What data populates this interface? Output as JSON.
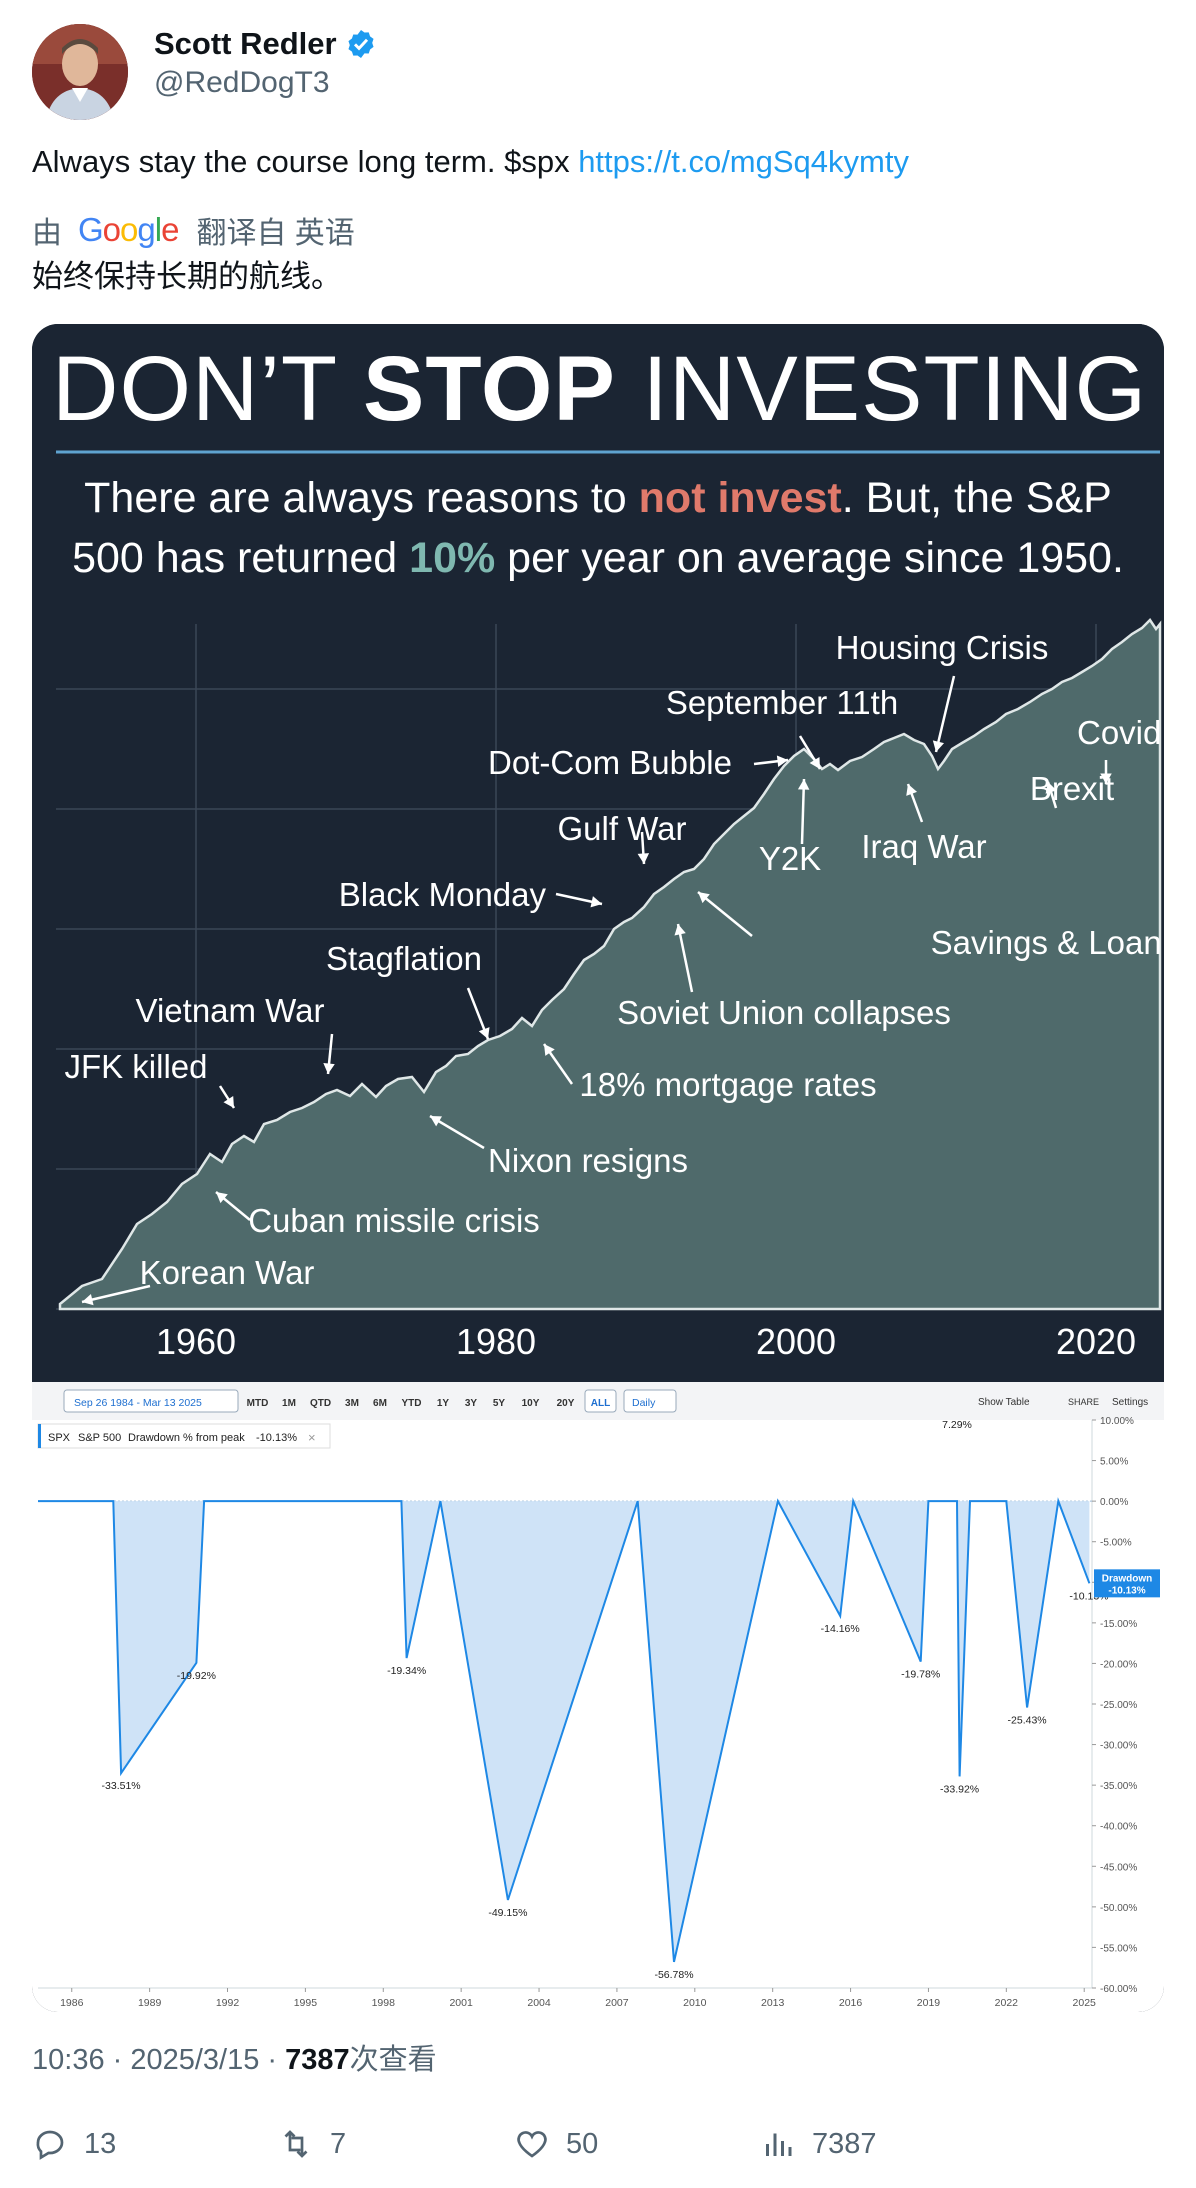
{
  "author": {
    "name": "Scott Redler",
    "handle": "@RedDogT3"
  },
  "tweet": {
    "text_before": "Always stay the course long term.  $spx ",
    "link": "https://t.co/mgSq4kymty",
    "translate_prefix": "由",
    "translate_logo": "Google",
    "translate_suffix": "翻译自 英语",
    "translated_text": "始终保持长期的航线。"
  },
  "infographic": {
    "title_light_1": "DON’T ",
    "title_bold": "STOP",
    "title_light_2": " INVESTING",
    "subtitle_line1_a": "There are always reasons to ",
    "subtitle_line1_b": "not invest",
    "subtitle_line1_c": ". But, the S&P",
    "subtitle_line2_a": "500 has returned ",
    "subtitle_line2_b": "10%",
    "subtitle_line2_c": " per year on average since 1950.",
    "accent_red": "#e07a6b",
    "accent_teal": "#7fb8b0",
    "x_ticks": [
      "1960",
      "1980",
      "2000",
      "2020"
    ],
    "events": [
      "Housing Crisis",
      "September 11th",
      "Covid",
      "Dot-Com Bubble",
      "Brexit",
      "Gulf War",
      "Y2K",
      "Iraq War",
      "Black Monday",
      "Savings & Loan Crisis",
      "Stagflation",
      "Soviet Union collapses",
      "Vietnam War",
      "JFK killed",
      "18% mortgage rates",
      "Nixon resigns",
      "Cuban missile crisis",
      "Korean War"
    ]
  },
  "drawdown_chart": {
    "toolbar": {
      "date_range": "Sep 26 1984 - Mar 13 2025",
      "periods": [
        "MTD",
        "1M",
        "QTD",
        "3M",
        "6M",
        "YTD",
        "1Y",
        "3Y",
        "5Y",
        "10Y",
        "20Y",
        "ALL"
      ],
      "active_period": "ALL",
      "interval": "Daily",
      "show_table": "Show Table",
      "share": "SHARE",
      "settings": "Settings"
    },
    "legend": {
      "symbol": "SPX",
      "series": "S&P 500",
      "metric": "Drawdown % from peak",
      "value": "-10.13%"
    },
    "current_badge": [
      "Drawdown",
      "-10.13%"
    ],
    "y_ticks": [
      "10.00%",
      "5.00%",
      "0.00%",
      "-5.00%",
      "-10.00%",
      "-15.00%",
      "-20.00%",
      "-25.00%",
      "-30.00%",
      "-35.00%",
      "-40.00%",
      "-45.00%",
      "-50.00%",
      "-55.00%",
      "-60.00%"
    ],
    "x_ticks": [
      "1986",
      "1989",
      "1992",
      "1995",
      "1998",
      "2001",
      "2004",
      "2007",
      "2010",
      "2013",
      "2016",
      "2019",
      "2022",
      "2025"
    ],
    "trough_labels": [
      "-33.51%",
      "-19.92%",
      "-19.34%",
      "-49.15%",
      "-56.78%",
      "-14.16%",
      "-19.78%",
      "-33.92%",
      "-25.43%",
      "-10.13%"
    ],
    "top_label": "7.29%"
  },
  "chart_data": {
    "type": "area",
    "title": "S&P 500 Drawdown % from peak",
    "ylabel": "",
    "ylim": [
      -60,
      10
    ],
    "x": [
      1984.7,
      1987.6,
      1987.9,
      1990.8,
      1991.1,
      1998.7,
      1998.9,
      2000.2,
      2002.8,
      2007.8,
      2009.2,
      2013.2,
      2015.6,
      2016.1,
      2018.7,
      2019.0,
      2020.1,
      2020.2,
      2020.6,
      2022.0,
      2022.8,
      2024.0,
      2025.2
    ],
    "values": [
      0,
      0,
      -33.51,
      -19.92,
      0,
      0,
      -19.34,
      0,
      -49.15,
      0,
      -56.78,
      0,
      -14.16,
      0,
      -19.78,
      0,
      0,
      -33.92,
      0,
      0,
      -25.43,
      0,
      -10.13
    ]
  },
  "meta": {
    "time": "10:36 · 2025/3/15 · ",
    "views_count": "7387",
    "views_label": "次查看"
  },
  "actions": {
    "replies": "13",
    "retweets": "7",
    "likes": "50",
    "views": "7387"
  },
  "colors": {
    "link": "#1d9bf0",
    "muted": "#536471",
    "infographic_bg": "#1b2533",
    "area_fill": "#4f6a6b",
    "drawdown_line": "#1e88e5",
    "drawdown_fill": "#cfe3f7"
  }
}
